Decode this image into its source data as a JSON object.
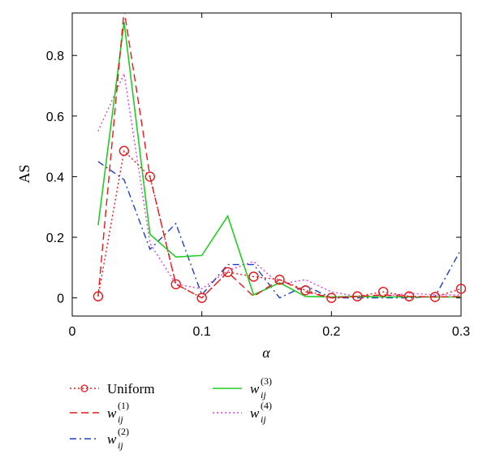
{
  "chart_data": {
    "type": "line",
    "xlabel": "α",
    "ylabel": "AS",
    "xlim": [
      0,
      0.3
    ],
    "ylim": [
      -0.06,
      0.94
    ],
    "xticks": [
      0,
      0.1,
      0.2,
      0.3
    ],
    "xtick_labels": [
      "0",
      "0.1",
      "0.2",
      "0.3"
    ],
    "yticks": [
      0,
      0.2,
      0.4,
      0.6,
      0.8
    ],
    "ytick_labels": [
      "0",
      "0.2",
      "0.4",
      "0.6",
      "0.8"
    ],
    "grid": false,
    "legend_position": "below plot",
    "x": [
      0.02,
      0.04,
      0.06,
      0.08,
      0.1,
      0.12,
      0.14,
      0.16,
      0.18,
      0.2,
      0.22,
      0.24,
      0.26,
      0.28,
      0.3
    ],
    "series": [
      {
        "name": "Uniform",
        "color": "#e31a1c",
        "style": "dotted-circle",
        "values": [
          0.005,
          0.485,
          0.4,
          0.045,
          0.0,
          0.085,
          0.07,
          0.06,
          0.025,
          0.0,
          0.005,
          0.02,
          0.005,
          0.003,
          0.03
        ]
      },
      {
        "name": "w_ij^(1)",
        "color": "#e31a1c",
        "style": "dashed",
        "values": [
          0.005,
          0.95,
          0.4,
          0.045,
          0.0,
          0.085,
          0.005,
          0.06,
          0.02,
          0.0,
          0.005,
          0.01,
          0.005,
          0.003,
          0.005
        ]
      },
      {
        "name": "w_ij^(2)",
        "color": "#1f3fbf",
        "style": "dashdot",
        "values": [
          0.45,
          0.39,
          0.16,
          0.245,
          0.01,
          0.11,
          0.11,
          0.0,
          0.04,
          0.0,
          0.0,
          0.0,
          0.0,
          0.005,
          0.16
        ]
      },
      {
        "name": "w_ij^(3)",
        "color": "#22cc22",
        "style": "solid",
        "values": [
          0.24,
          0.91,
          0.21,
          0.135,
          0.14,
          0.27,
          0.01,
          0.05,
          0.005,
          0.003,
          0.005,
          0.003,
          0.003,
          0.003,
          0.003
        ]
      },
      {
        "name": "w_ij^(4)",
        "color": "#e040e0",
        "style": "dotted",
        "values": [
          0.55,
          0.74,
          0.18,
          0.045,
          0.03,
          0.09,
          0.12,
          0.045,
          0.06,
          0.02,
          0.005,
          0.005,
          0.015,
          0.01,
          0.01
        ]
      }
    ],
    "legend": [
      {
        "label": "Uniform",
        "base": "",
        "sub": "",
        "sup": ""
      },
      {
        "label": "w_ij^(1)",
        "base": "w",
        "sub": "ij",
        "sup": "(1)"
      },
      {
        "label": "w_ij^(2)",
        "base": "w",
        "sub": "ij",
        "sup": "(2)"
      },
      {
        "label": "w_ij^(3)",
        "base": "w",
        "sub": "ij",
        "sup": "(3)"
      },
      {
        "label": "w_ij^(4)",
        "base": "w",
        "sub": "ij",
        "sup": "(4)"
      }
    ]
  }
}
